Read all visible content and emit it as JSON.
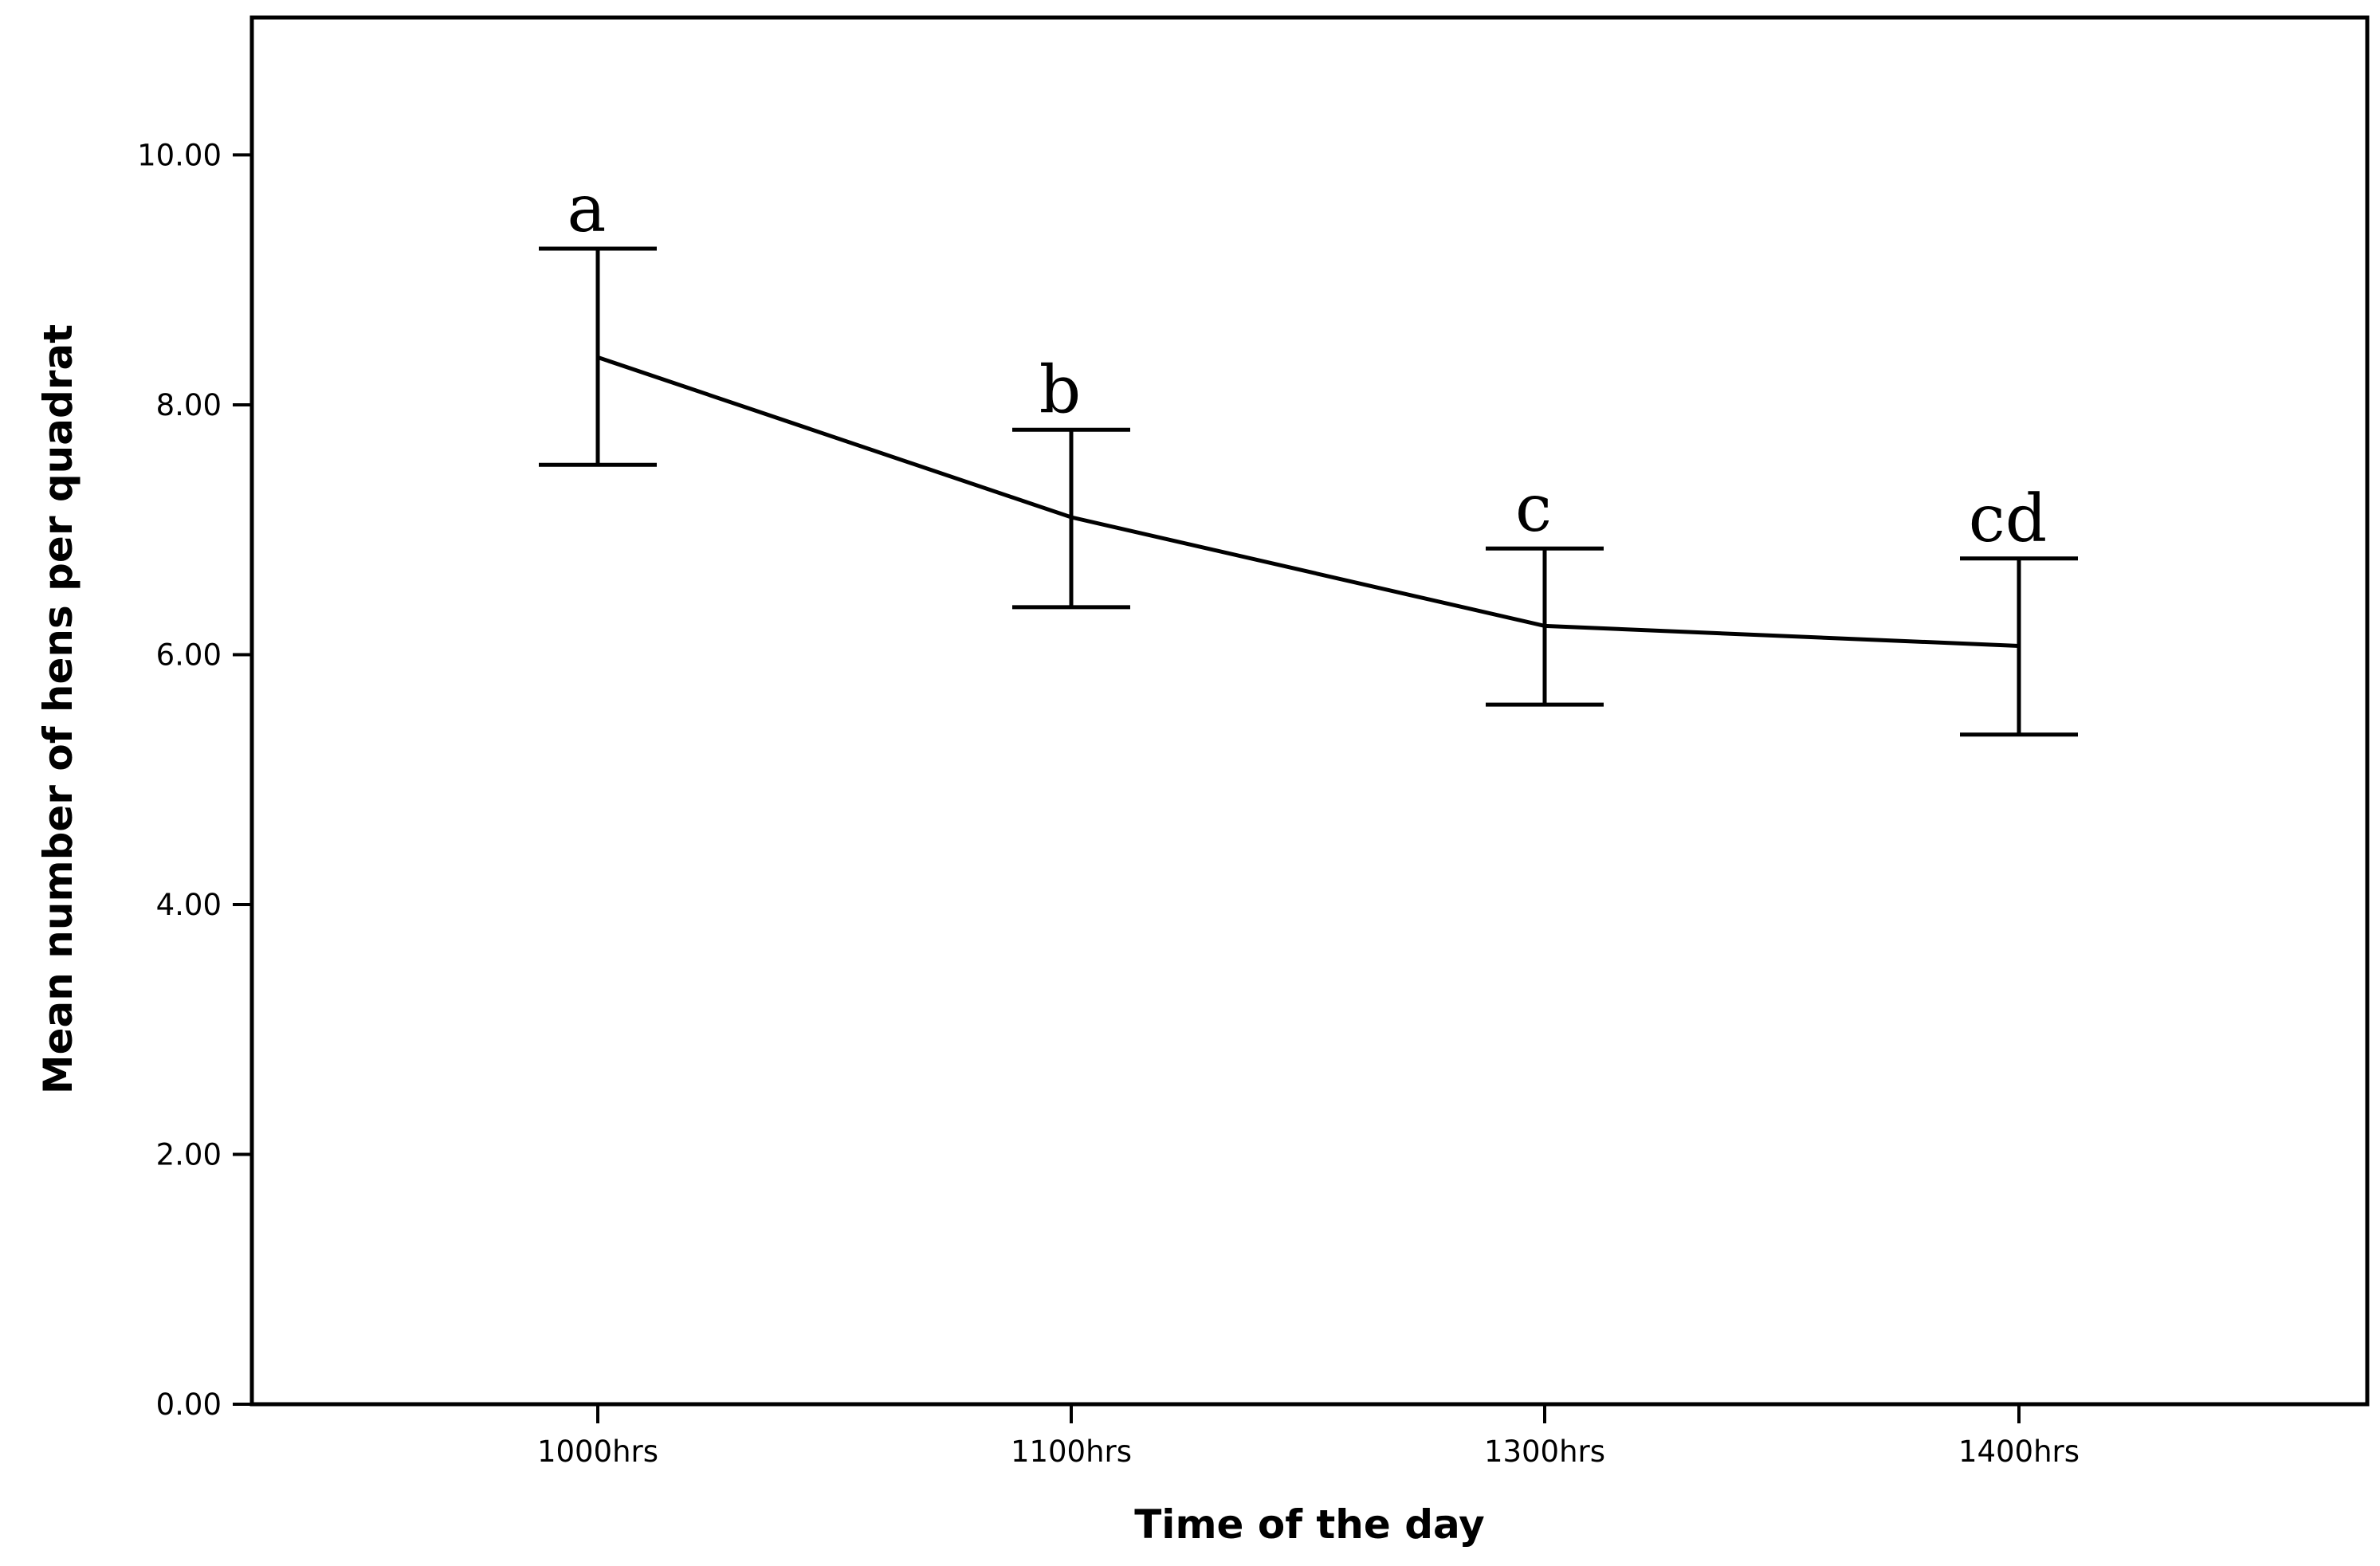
{
  "chart_data": {
    "type": "line",
    "title": "",
    "xlabel": "Time of the day",
    "ylabel": "Mean number of hens per quadrat",
    "categories": [
      "1000hrs",
      "1100hrs",
      "1300hrs",
      "1400hrs"
    ],
    "series": [
      {
        "name": "Mean number of hens per quadrat",
        "values": [
          8.38,
          7.1,
          6.23,
          6.07
        ],
        "error_lower": [
          7.52,
          6.38,
          5.6,
          5.36
        ],
        "error_upper": [
          9.25,
          7.8,
          6.85,
          6.77
        ],
        "annotations": [
          "a",
          "b",
          "c",
          "cd"
        ]
      }
    ],
    "ylim": [
      0,
      11.1
    ],
    "yticks": [
      0,
      2,
      4,
      6,
      8,
      10
    ],
    "ytick_labels": [
      "0.00",
      "2.00",
      "4.00",
      "6.00",
      "8.00",
      "10.00"
    ],
    "grid": false,
    "legend": "none"
  }
}
